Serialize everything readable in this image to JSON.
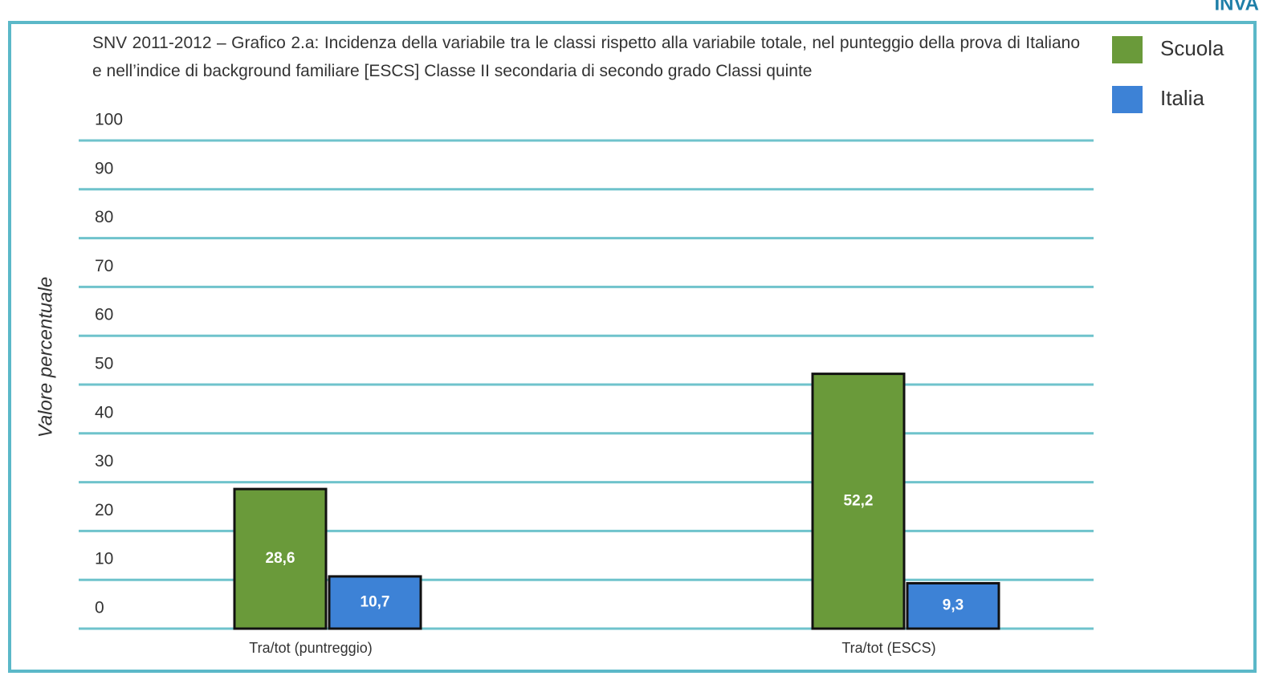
{
  "header": {
    "logo": "INVA"
  },
  "chart_data": {
    "type": "bar",
    "title": "SNV 2011-2012 –  Grafico 2.a: Incidenza della variabile tra le classi rispetto alla variabile totale, nel punteggio della prova di Italiano e nell’indice di background familiare [ESCS] Classe II secondaria di secondo grado Classi quinte",
    "y_label": "Valore percentuale",
    "categories": [
      "Tra/tot (puntreggio)",
      "Tra/tot (ESCS)"
    ],
    "series": [
      {
        "name": "Scuola",
        "color": "#6a9a3a",
        "values": [
          28.6,
          52.2
        ],
        "value_labels": [
          "28,6",
          "52,2"
        ]
      },
      {
        "name": "Italia",
        "color": "#3d82d6",
        "values": [
          10.7,
          9.3
        ],
        "value_labels": [
          "10,7",
          "9,3"
        ]
      }
    ],
    "ylim": [
      0,
      100
    ],
    "yticks": [
      0,
      10,
      20,
      30,
      40,
      50,
      60,
      70,
      80,
      90,
      100
    ],
    "grid": true,
    "legend": "top-right"
  }
}
